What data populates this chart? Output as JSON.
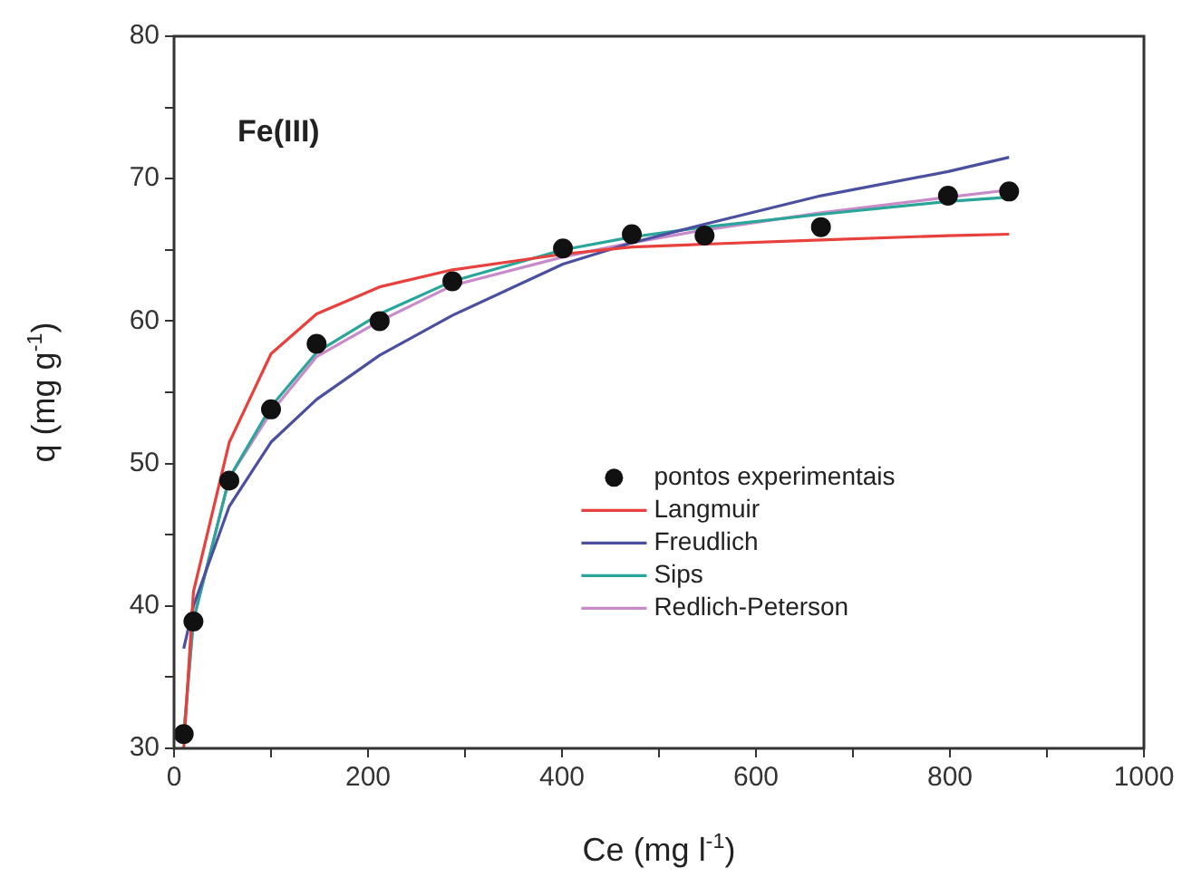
{
  "chart_data": {
    "type": "line",
    "title": "Fe(III)",
    "xlabel": "Ce (mg l$^{-1}$)",
    "ylabel": "q (mg g$^{-1}$)",
    "x": [
      10,
      20,
      57,
      100,
      147,
      212,
      287,
      401,
      472,
      547,
      667,
      798,
      861
    ],
    "series": [
      {
        "name": "pontos experimentais",
        "type": "scatter",
        "color": "#111111",
        "marker": "circle",
        "values": [
          31,
          38.9,
          48.8,
          53.8,
          58.4,
          60.0,
          62.8,
          65.1,
          66.1,
          66.0,
          66.6,
          68.8,
          69.1
        ]
      },
      {
        "name": "Langmuir",
        "color": "#e8403c",
        "marker": "none",
        "values": [
          30,
          41,
          51.5,
          57.7,
          60.5,
          62.4,
          63.6,
          64.7,
          65.2,
          65.4,
          65.7,
          66.0,
          66.1
        ]
      },
      {
        "name": "Freudlich",
        "color": "#4a4fa0",
        "marker": "none",
        "values": [
          37,
          40,
          47,
          51.5,
          54.5,
          57.6,
          60.4,
          64,
          65.5,
          66.8,
          68.8,
          70.5,
          71.5
        ]
      },
      {
        "name": "Sips",
        "color": "#2aa59a",
        "marker": "none",
        "values": [
          31,
          39,
          49,
          54,
          57.8,
          60.5,
          62.8,
          65,
          65.9,
          66.6,
          67.5,
          68.4,
          68.7
        ]
      },
      {
        "name": "Redlich-Peterson",
        "color": "#c88ac8",
        "marker": "none",
        "values": [
          31,
          39,
          49,
          53.6,
          57.5,
          60.0,
          62.5,
          64.5,
          65.5,
          66.4,
          67.6,
          68.7,
          69.2
        ]
      }
    ],
    "xlim": [
      0,
      1000
    ],
    "xticks": [
      0,
      {
        "value": 100,
        "label": null
      },
      200,
      {
        "value": 300,
        "label": null
      },
      400,
      {
        "value": 500,
        "label": null
      },
      600,
      {
        "value": 700,
        "label": null
      },
      800,
      {
        "value": 900,
        "label": null
      },
      1000
    ],
    "ylim": [
      30,
      80
    ],
    "yticks": [
      30,
      {
        "value": 35,
        "label": null
      },
      40,
      {
        "value": 45,
        "label": null
      },
      50,
      {
        "value": 55,
        "label": null
      },
      60,
      {
        "value": 65,
        "label": null
      },
      70,
      {
        "value": 75,
        "label": null
      },
      80
    ],
    "grid": false,
    "legend": "right"
  }
}
